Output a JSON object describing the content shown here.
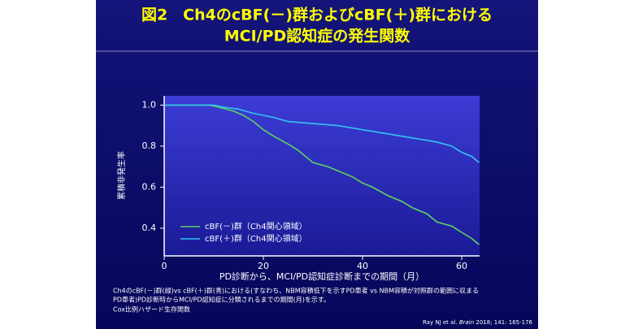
{
  "header": {
    "title_lines": [
      "図2　Ch4のcBF(－)群およびcBF(＋)群における",
      "MCI/PD認知症の発生関数"
    ]
  },
  "chart_data": {
    "type": "line",
    "ylabel": "累積非発生率",
    "xlabel": "PD診断から、MCI/PD認知症診断までの期間（月）",
    "xlim": [
      0,
      63.6
    ],
    "ylim": [
      0.265,
      1.045
    ],
    "xticks": [
      0,
      20,
      40,
      60
    ],
    "yticks": [
      {
        "value": 1.0,
        "label": "1.0"
      },
      {
        "value": 0.8,
        "label": "0.8"
      },
      {
        "value": 0.6,
        "label": "0.6"
      },
      {
        "value": 0.4,
        "label": "0.4"
      }
    ],
    "series": [
      {
        "name": "cBF(－)群（Ch4関心領域）",
        "color": "#5fd35f",
        "x": [
          0,
          9,
          11,
          14,
          16,
          18,
          20,
          22,
          25,
          27,
          30,
          33,
          36,
          38,
          40,
          42,
          45,
          48,
          50,
          53,
          55,
          58,
          60,
          62,
          63.5
        ],
        "values": [
          1.0,
          1.0,
          0.99,
          0.97,
          0.95,
          0.92,
          0.88,
          0.85,
          0.81,
          0.78,
          0.72,
          0.7,
          0.67,
          0.65,
          0.62,
          0.6,
          0.56,
          0.53,
          0.5,
          0.47,
          0.43,
          0.41,
          0.38,
          0.35,
          0.32
        ]
      },
      {
        "name": "cBF(＋)群（Ch4関心領域）",
        "color": "#33c4f0",
        "x": [
          0,
          10,
          12,
          15,
          18,
          22,
          25,
          30,
          35,
          40,
          45,
          50,
          55,
          58,
          60,
          62,
          63.5
        ],
        "values": [
          1.0,
          1.0,
          0.99,
          0.98,
          0.96,
          0.94,
          0.92,
          0.91,
          0.9,
          0.88,
          0.86,
          0.84,
          0.82,
          0.8,
          0.77,
          0.75,
          0.72
        ]
      }
    ]
  },
  "footnote": [
    "Ch4のcBF(－)群(緑)vs cBF(＋)群(青)における(すなわち、NBM容積低下を示すPD患者 vs NBM容積が対照群の範囲に収まる",
    "PD患者)PD診断時からMCI/PD認知症に分類されるまでの期間(月)を示す。",
    "Cox比例ハザード生存関数"
  ],
  "citation": {
    "before": "Ray NJ et al. ",
    "journal": "Brain",
    "after": " 2018; 141: 165-176"
  }
}
